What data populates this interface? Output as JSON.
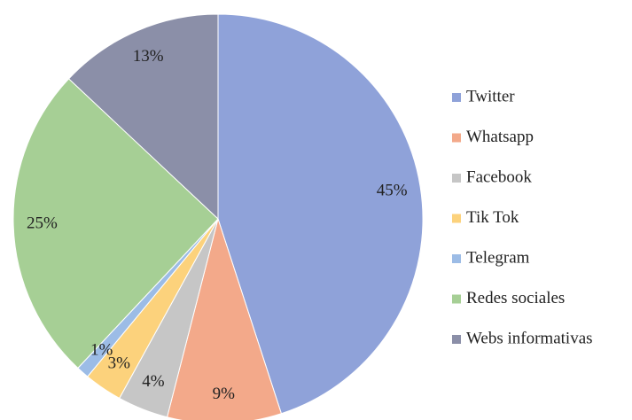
{
  "chart_data": {
    "type": "pie",
    "categories": [
      "Twitter",
      "Whatsapp",
      "Facebook",
      "Tik Tok",
      "Telegram",
      "Redes sociales",
      "Webs informativas"
    ],
    "values": [
      45,
      9,
      4,
      3,
      1,
      25,
      13
    ],
    "value_labels": [
      "45%",
      "9%",
      "4%",
      "3%",
      "1%",
      "25%",
      "13%"
    ],
    "colors": [
      "#8fa2d9",
      "#f3a98a",
      "#c6c6c6",
      "#fcd27c",
      "#9cbce6",
      "#a6cf95",
      "#8b8fa8"
    ],
    "legend": "right"
  }
}
